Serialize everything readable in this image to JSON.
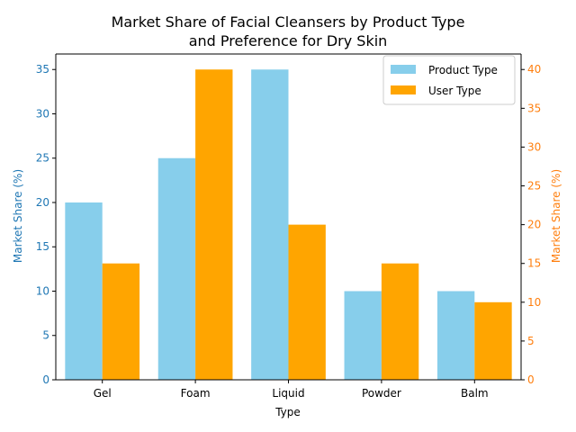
{
  "chart_data": {
    "type": "bar",
    "title_lines": [
      "Market Share of Facial Cleansers by Product Type",
      "and Preference for Dry Skin"
    ],
    "xlabel": "Type",
    "categories": [
      "Gel",
      "Foam",
      "Liquid",
      "Powder",
      "Balm"
    ],
    "series": [
      {
        "name": "Product Type",
        "axis": "left",
        "color": "#87ceeb",
        "values": [
          20,
          25,
          35,
          10,
          10
        ]
      },
      {
        "name": "User Type",
        "axis": "right",
        "color": "#ffa500",
        "values": [
          15,
          40,
          20,
          15,
          10
        ]
      }
    ],
    "left_axis": {
      "label": "Market Share (%)",
      "color": "#1f77b4",
      "ylim": [
        0,
        36.75
      ],
      "ticks": [
        0,
        5,
        10,
        15,
        20,
        25,
        30,
        35
      ]
    },
    "right_axis": {
      "label": "Market Share (%)",
      "color": "#ff7f0e",
      "ylim": [
        0,
        42
      ],
      "ticks": [
        0,
        5,
        10,
        15,
        20,
        25,
        30,
        35,
        40
      ]
    },
    "legend_position": "top-right",
    "grid": false
  }
}
